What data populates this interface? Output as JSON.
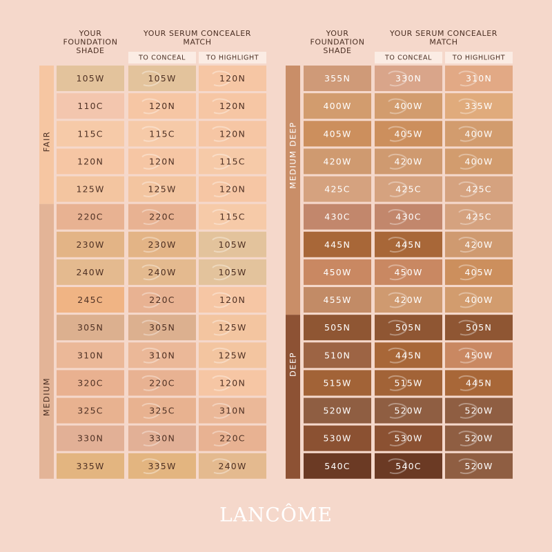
{
  "tables": [
    {
      "header_foundation": [
        "YOUR",
        "FOUNDATION",
        "SHADE"
      ],
      "header_match": [
        "YOUR SERUM CONCEALER",
        "MATCH"
      ],
      "sub_headers": [
        "TO CONCEAL",
        "TO HIGHLIGHT"
      ],
      "groups": [
        {
          "label": "FAIR",
          "color": "#f6c6a2",
          "rows": [
            {
              "cells": [
                "105W",
                "105W",
                "120N"
              ],
              "colors": [
                "#e3c39c",
                "#e3c39c",
                "#f6c6a4"
              ]
            },
            {
              "cells": [
                "110C",
                "120N",
                "120N"
              ],
              "colors": [
                "#f3c6ae",
                "#f6c6a4",
                "#f6c6a4"
              ]
            },
            {
              "cells": [
                "115C",
                "115C",
                "120N"
              ],
              "colors": [
                "#f6caa8",
                "#f6caa8",
                "#f6c6a4"
              ]
            },
            {
              "cells": [
                "120N",
                "120N",
                "115C"
              ],
              "colors": [
                "#f6c6a4",
                "#f6c6a4",
                "#f6caa8"
              ]
            },
            {
              "cells": [
                "125W",
                "125W",
                "120N"
              ],
              "colors": [
                "#f3c5a0",
                "#f3c5a0",
                "#f6c6a4"
              ]
            }
          ]
        },
        {
          "label": "MEDIUM",
          "color": "#e3b497",
          "rows": [
            {
              "cells": [
                "220C",
                "220C",
                "115C"
              ],
              "colors": [
                "#e8b292",
                "#e8b292",
                "#f6caa8"
              ]
            },
            {
              "cells": [
                "230W",
                "230W",
                "105W"
              ],
              "colors": [
                "#e3b486",
                "#e3b486",
                "#e3c39c"
              ]
            },
            {
              "cells": [
                "240W",
                "240W",
                "105W"
              ],
              "colors": [
                "#e4ba8f",
                "#e4ba8f",
                "#e3c39c"
              ]
            },
            {
              "cells": [
                "245C",
                "220C",
                "120N"
              ],
              "colors": [
                "#f0b484",
                "#e8b292",
                "#f6c6a4"
              ]
            },
            {
              "cells": [
                "305N",
                "305N",
                "125W"
              ],
              "colors": [
                "#dcb08f",
                "#dcb08f",
                "#f3c5a0"
              ]
            },
            {
              "cells": [
                "310N",
                "310N",
                "125W"
              ],
              "colors": [
                "#ebb898",
                "#ebb898",
                "#f3c5a0"
              ]
            },
            {
              "cells": [
                "320C",
                "220C",
                "120N"
              ],
              "colors": [
                "#e9b190",
                "#e8b292",
                "#f6c6a4"
              ]
            },
            {
              "cells": [
                "325C",
                "325C",
                "310N"
              ],
              "colors": [
                "#e8b290",
                "#e8b290",
                "#ebb898"
              ]
            },
            {
              "cells": [
                "330N",
                "330N",
                "220C"
              ],
              "colors": [
                "#e2b096",
                "#e2b096",
                "#e8b292"
              ]
            },
            {
              "cells": [
                "335W",
                "335W",
                "240W"
              ],
              "colors": [
                "#e3b580",
                "#e3b580",
                "#e4ba8f"
              ]
            }
          ]
        }
      ]
    },
    {
      "header_foundation": [
        "YOUR",
        "FOUNDATION",
        "SHADE"
      ],
      "header_match": [
        "YOUR SERUM CONCEALER",
        "MATCH"
      ],
      "sub_headers": [
        "TO CONCEAL",
        "TO HIGHLIGHT"
      ],
      "groups": [
        {
          "label": "MEDIUM DEEP",
          "color": "#c98e68",
          "rows": [
            {
              "cells": [
                "355N",
                "330N",
                "310N"
              ],
              "colors": [
                "#cf9a78",
                "#d9a58a",
                "#e2a985"
              ]
            },
            {
              "cells": [
                "400W",
                "400W",
                "335W"
              ],
              "colors": [
                "#d29c6e",
                "#d29c6e",
                "#e0ab7c"
              ]
            },
            {
              "cells": [
                "405W",
                "405W",
                "400W"
              ],
              "colors": [
                "#cc8f5d",
                "#cc8f5d",
                "#d29c6e"
              ]
            },
            {
              "cells": [
                "420W",
                "420W",
                "400W"
              ],
              "colors": [
                "#cf9a70",
                "#cf9a70",
                "#d29c6e"
              ]
            },
            {
              "cells": [
                "425C",
                "425C",
                "425C"
              ],
              "colors": [
                "#d5a27f",
                "#d5a27f",
                "#d5a27f"
              ]
            },
            {
              "cells": [
                "430C",
                "430C",
                "425C"
              ],
              "colors": [
                "#c2876c",
                "#c2876c",
                "#d5a27f"
              ]
            },
            {
              "cells": [
                "445N",
                "445N",
                "420W"
              ],
              "colors": [
                "#a86738",
                "#a86738",
                "#cf9a70"
              ]
            },
            {
              "cells": [
                "450W",
                "450W",
                "405W"
              ],
              "colors": [
                "#c98862",
                "#c98862",
                "#cc8f5d"
              ]
            },
            {
              "cells": [
                "455W",
                "420W",
                "400W"
              ],
              "colors": [
                "#c28b66",
                "#cf9a70",
                "#d29c6e"
              ]
            }
          ]
        },
        {
          "label": "DEEP",
          "color": "#8d5234",
          "rows": [
            {
              "cells": [
                "505N",
                "505N",
                "505N"
              ],
              "colors": [
                "#8f5633",
                "#8f5633",
                "#8f5633"
              ]
            },
            {
              "cells": [
                "510N",
                "445N",
                "450W"
              ],
              "colors": [
                "#9d6444",
                "#a86738",
                "#c98862"
              ]
            },
            {
              "cells": [
                "515W",
                "515W",
                "445N"
              ],
              "colors": [
                "#a26337",
                "#a26337",
                "#a86738"
              ]
            },
            {
              "cells": [
                "520W",
                "520W",
                "520W"
              ],
              "colors": [
                "#8f5e42",
                "#8f5e42",
                "#8f5e42"
              ]
            },
            {
              "cells": [
                "530W",
                "530W",
                "520W"
              ],
              "colors": [
                "#8b5132",
                "#8b5132",
                "#8f5e42"
              ]
            },
            {
              "cells": [
                "540C",
                "540C",
                "520W"
              ],
              "colors": [
                "#6b3a24",
                "#6b3a24",
                "#8f5e42"
              ]
            }
          ]
        }
      ]
    }
  ],
  "brand": "LANCÔME"
}
